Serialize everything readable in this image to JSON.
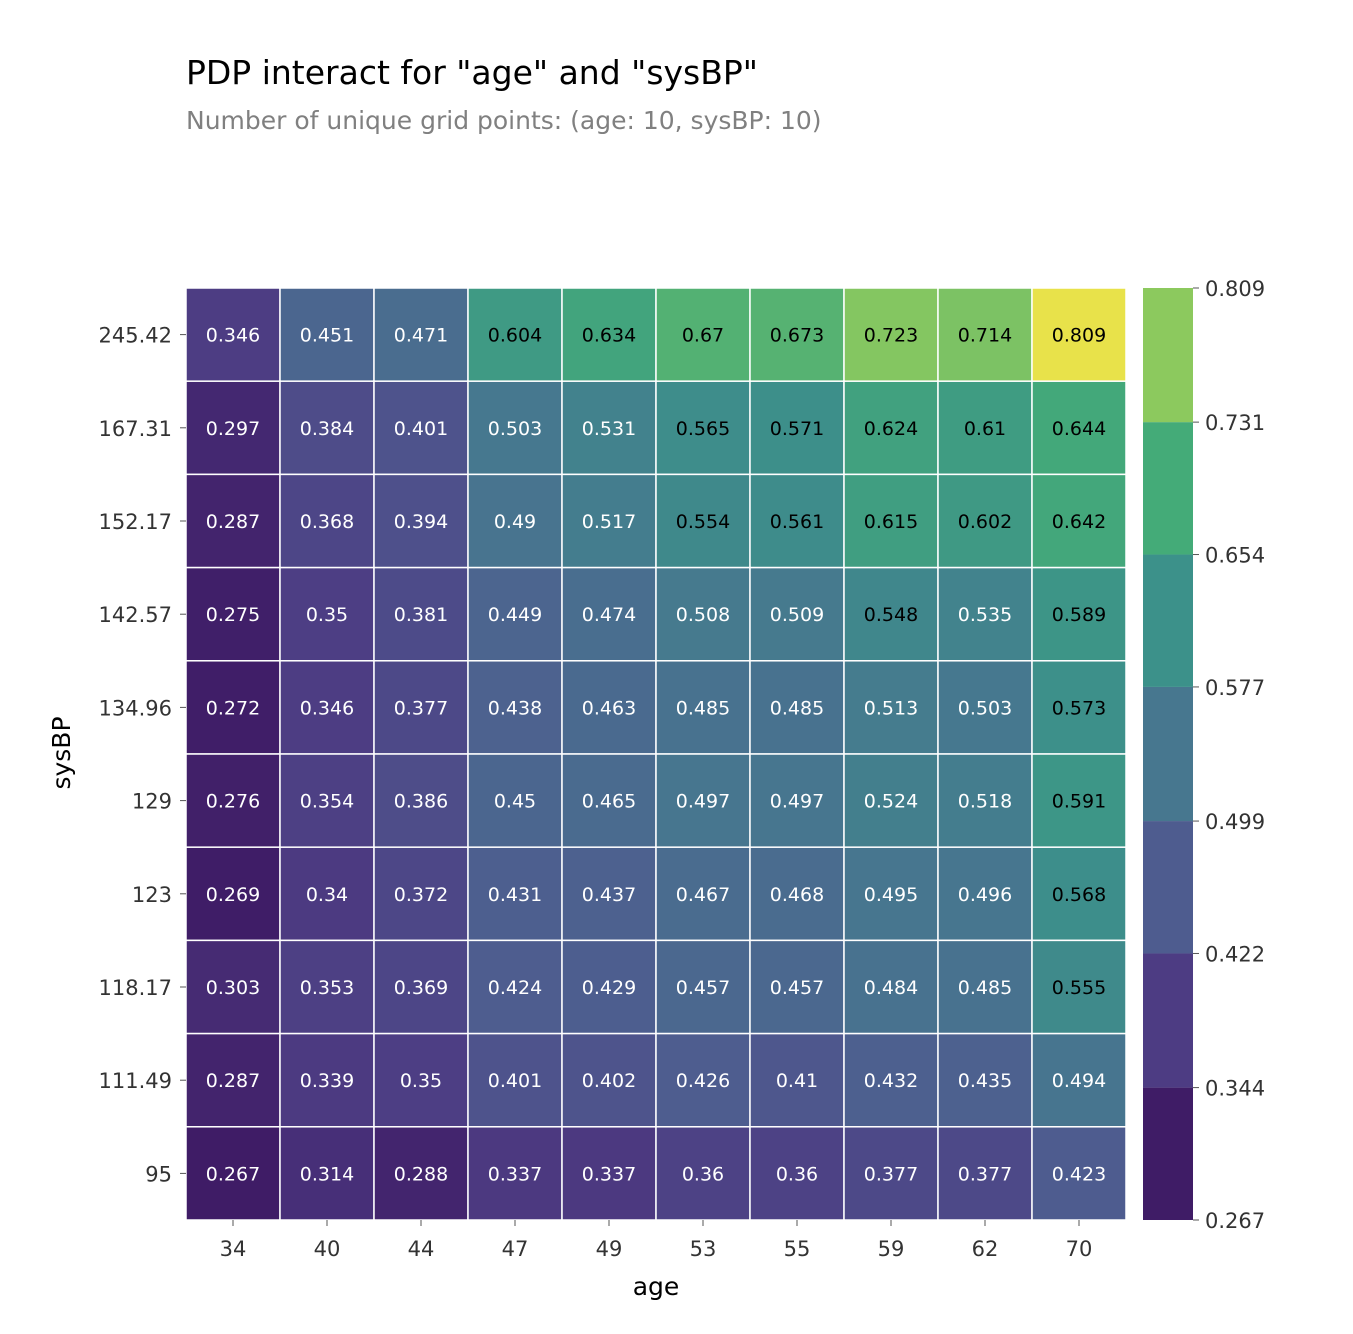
{
  "chart_data": {
    "type": "heatmap",
    "title": "PDP interact for \"age\" and \"sysBP\"",
    "subtitle": "Number of unique grid points: (age: 10, sysBP: 10)",
    "xlabel": "age",
    "ylabel": "sysBP",
    "x": [
      "34",
      "40",
      "44",
      "47",
      "49",
      "53",
      "55",
      "59",
      "62",
      "70"
    ],
    "y": [
      "245.42",
      "167.31",
      "152.17",
      "142.57",
      "134.96",
      "129",
      "123",
      "118.17",
      "111.49",
      "95"
    ],
    "values": [
      [
        "0.346",
        "0.451",
        "0.471",
        "0.604",
        "0.634",
        "0.67",
        "0.673",
        "0.723",
        "0.714",
        "0.809"
      ],
      [
        "0.297",
        "0.384",
        "0.401",
        "0.503",
        "0.531",
        "0.565",
        "0.571",
        "0.624",
        "0.61",
        "0.644"
      ],
      [
        "0.287",
        "0.368",
        "0.394",
        "0.49",
        "0.517",
        "0.554",
        "0.561",
        "0.615",
        "0.602",
        "0.642"
      ],
      [
        "0.275",
        "0.35",
        "0.381",
        "0.449",
        "0.474",
        "0.508",
        "0.509",
        "0.548",
        "0.535",
        "0.589"
      ],
      [
        "0.272",
        "0.346",
        "0.377",
        "0.438",
        "0.463",
        "0.485",
        "0.485",
        "0.513",
        "0.503",
        "0.573"
      ],
      [
        "0.276",
        "0.354",
        "0.386",
        "0.45",
        "0.465",
        "0.497",
        "0.497",
        "0.524",
        "0.518",
        "0.591"
      ],
      [
        "0.269",
        "0.34",
        "0.372",
        "0.431",
        "0.437",
        "0.467",
        "0.468",
        "0.495",
        "0.496",
        "0.568"
      ],
      [
        "0.303",
        "0.353",
        "0.369",
        "0.424",
        "0.429",
        "0.457",
        "0.457",
        "0.484",
        "0.485",
        "0.555"
      ],
      [
        "0.287",
        "0.339",
        "0.35",
        "0.401",
        "0.402",
        "0.426",
        "0.41",
        "0.432",
        "0.435",
        "0.494"
      ],
      [
        "0.267",
        "0.314",
        "0.288",
        "0.337",
        "0.337",
        "0.36",
        "0.36",
        "0.377",
        "0.377",
        "0.423"
      ]
    ],
    "colorbar": {
      "ticks": [
        "0.267",
        "0.344",
        "0.422",
        "0.499",
        "0.577",
        "0.654",
        "0.731",
        "0.809"
      ],
      "range": [
        0.267,
        0.809
      ]
    },
    "colormap": [
      "#3f1c66",
      "#4d3c83",
      "#4e5c8f",
      "#47778f",
      "#3c918a",
      "#44ab78",
      "#8cc95e",
      "#e8e24a"
    ],
    "label_colors": {
      "light": "#ffffff",
      "dark": "#000000"
    },
    "grid": false
  }
}
